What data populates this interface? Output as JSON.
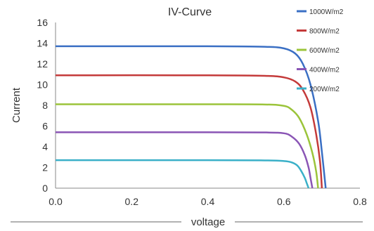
{
  "chart_data": {
    "type": "line",
    "title": "IV-Curve",
    "xlabel": "voltage",
    "ylabel": "Current",
    "xlim": [
      0.0,
      0.8
    ],
    "ylim": [
      0,
      16
    ],
    "xticks": [
      "0.0",
      "0.2",
      "0.4",
      "0.6",
      "0.8"
    ],
    "yticks": [
      "0",
      "2",
      "4",
      "6",
      "8",
      "10",
      "12",
      "14",
      "16"
    ],
    "grid": false,
    "legend_position": "top-right",
    "series": [
      {
        "name": "1000W/m2",
        "color": "#3a6fc4",
        "x": [
          0.0,
          0.4,
          0.55,
          0.6,
          0.63,
          0.65,
          0.67,
          0.69,
          0.7,
          0.71
        ],
        "y": [
          13.7,
          13.7,
          13.65,
          13.5,
          13.0,
          12.0,
          10.0,
          6.5,
          3.5,
          0.0
        ]
      },
      {
        "name": "800W/m2",
        "color": "#c43a3a",
        "x": [
          0.0,
          0.4,
          0.55,
          0.6,
          0.63,
          0.65,
          0.67,
          0.685,
          0.695,
          0.7
        ],
        "y": [
          10.9,
          10.9,
          10.85,
          10.7,
          10.3,
          9.5,
          7.8,
          5.2,
          2.6,
          0.0
        ]
      },
      {
        "name": "600W/m2",
        "color": "#9bc43a",
        "x": [
          0.0,
          0.4,
          0.55,
          0.6,
          0.62,
          0.64,
          0.66,
          0.675,
          0.685,
          0.69
        ],
        "y": [
          8.1,
          8.1,
          8.08,
          7.95,
          7.6,
          6.8,
          5.2,
          3.4,
          1.6,
          0.0
        ]
      },
      {
        "name": "400W/m2",
        "color": "#8a55b5",
        "x": [
          0.0,
          0.4,
          0.55,
          0.6,
          0.62,
          0.64,
          0.655,
          0.665,
          0.67,
          0.675
        ],
        "y": [
          5.4,
          5.4,
          5.38,
          5.3,
          5.0,
          4.3,
          3.2,
          2.0,
          1.0,
          0.0
        ]
      },
      {
        "name": "200W/m2",
        "color": "#3ab0c8",
        "x": [
          0.0,
          0.4,
          0.55,
          0.6,
          0.62,
          0.635,
          0.645,
          0.655,
          0.66,
          0.665
        ],
        "y": [
          2.7,
          2.7,
          2.68,
          2.62,
          2.5,
          2.2,
          1.7,
          1.0,
          0.5,
          0.0
        ]
      }
    ]
  }
}
